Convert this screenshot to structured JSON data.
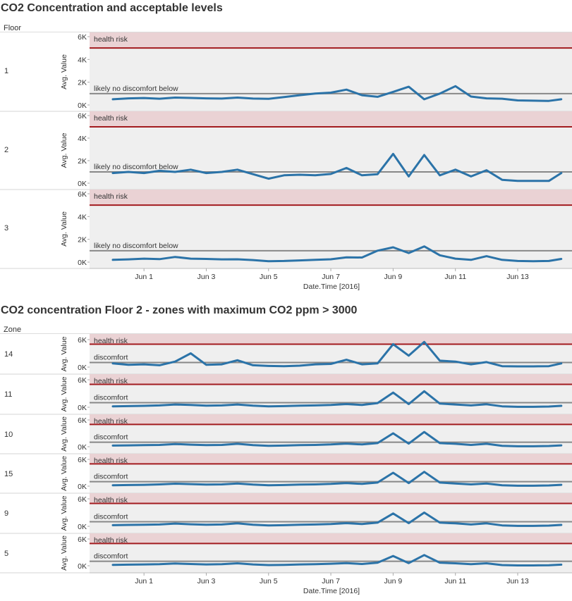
{
  "chart_top": {
    "title": "CO2 Concentration and acceptable levels",
    "row_header": "Floor",
    "ylabel": "Avg. Value",
    "xlabel": "Date.Time [2016]",
    "health_label": "health risk",
    "threshold_label": "likely no discomfort below",
    "y_ticks": [
      "6K",
      "4K",
      "2K",
      "0K"
    ],
    "x_ticks": [
      "Jun 1",
      "Jun 3",
      "Jun 5",
      "Jun 7",
      "Jun 9",
      "Jun 11",
      "Jun 13"
    ]
  },
  "chart_bottom": {
    "title": "CO2 concentration Floor 2 - zones with maximum CO2 ppm > 3000",
    "row_header": "Zone",
    "ylabel": "Avg. Value",
    "xlabel": "Date.Time [2016]",
    "health_label": "health risk",
    "threshold_label": "discomfort",
    "y_ticks": [
      "6K",
      "0K"
    ],
    "x_ticks": [
      "Jun 1",
      "Jun 3",
      "Jun 5",
      "Jun 7",
      "Jun 9",
      "Jun 11",
      "Jun 13"
    ]
  },
  "colors": {
    "line": "#2b73a8",
    "health_band": "#ead2d4",
    "health_line": "#a31b1f",
    "threshold_line": "#888888",
    "panel_bg": "#efefef"
  },
  "chart_data": [
    {
      "type": "line",
      "title": "CO2 Concentration and acceptable levels",
      "xlabel": "Date.Time [2016]",
      "ylabel": "Avg. Value",
      "ylim": [
        0,
        6000
      ],
      "x_unit": "days of June 2016",
      "thresholds": {
        "health_risk": 5000,
        "discomfort": 1000
      },
      "x": [
        30.0,
        30.5,
        31.0,
        31.5,
        32.0,
        32.5,
        33.0,
        33.5,
        34.0,
        34.5,
        35.0,
        35.5,
        36.0,
        36.5,
        37.0,
        37.5,
        38.0,
        38.5,
        39.0,
        39.5,
        40.0,
        40.5,
        41.0,
        41.5,
        42.0,
        42.5,
        43.0,
        43.5,
        44.0,
        44.4
      ],
      "series": [
        {
          "name": "1",
          "values": [
            500,
            580,
            610,
            550,
            650,
            620,
            580,
            560,
            650,
            560,
            540,
            700,
            860,
            1000,
            1080,
            1350,
            860,
            720,
            1150,
            1600,
            500,
            1000,
            1650,
            740,
            580,
            550,
            400,
            380,
            360,
            500
          ]
        },
        {
          "name": "2",
          "values": [
            900,
            1000,
            900,
            1100,
            1000,
            1200,
            900,
            1000,
            1200,
            800,
            400,
            700,
            750,
            700,
            820,
            1350,
            700,
            800,
            2600,
            600,
            2500,
            700,
            1200,
            600,
            1150,
            300,
            200,
            200,
            200,
            900
          ]
        },
        {
          "name": "3",
          "values": [
            200,
            240,
            300,
            260,
            450,
            300,
            280,
            240,
            250,
            180,
            80,
            100,
            150,
            200,
            250,
            420,
            400,
            1000,
            1300,
            800,
            1380,
            600,
            300,
            200,
            520,
            200,
            100,
            80,
            100,
            280
          ]
        }
      ]
    },
    {
      "type": "line",
      "title": "CO2 concentration Floor 2 - zones with maximum CO2 ppm > 3000",
      "xlabel": "Date.Time [2016]",
      "ylabel": "Avg. Value",
      "ylim": [
        0,
        6000
      ],
      "x_unit": "days of June 2016",
      "thresholds": {
        "health_risk": 5000,
        "discomfort": 1000
      },
      "x": [
        30.0,
        30.5,
        31.0,
        31.5,
        32.0,
        32.5,
        33.0,
        33.5,
        34.0,
        34.5,
        35.0,
        35.5,
        36.0,
        36.5,
        37.0,
        37.5,
        38.0,
        38.5,
        39.0,
        39.5,
        40.0,
        40.5,
        41.0,
        41.5,
        42.0,
        42.5,
        43.0,
        43.5,
        44.0,
        44.4
      ],
      "series": [
        {
          "name": "14",
          "values": [
            800,
            500,
            600,
            400,
            1200,
            3000,
            500,
            600,
            1500,
            400,
            250,
            200,
            300,
            600,
            700,
            1600,
            600,
            800,
            5000,
            2500,
            5500,
            1400,
            1200,
            600,
            1100,
            200,
            150,
            150,
            200,
            800
          ]
        },
        {
          "name": "11",
          "values": [
            200,
            250,
            300,
            400,
            600,
            500,
            350,
            400,
            600,
            350,
            200,
            250,
            350,
            400,
            500,
            700,
            500,
            900,
            3200,
            700,
            3500,
            800,
            600,
            400,
            650,
            200,
            100,
            100,
            150,
            300
          ]
        },
        {
          "name": "10",
          "values": [
            250,
            300,
            350,
            400,
            600,
            450,
            350,
            400,
            650,
            350,
            200,
            250,
            350,
            400,
            500,
            700,
            500,
            800,
            3000,
            700,
            3300,
            800,
            650,
            400,
            650,
            200,
            100,
            100,
            150,
            300
          ]
        },
        {
          "name": "15",
          "values": [
            200,
            250,
            300,
            400,
            550,
            450,
            350,
            400,
            600,
            350,
            200,
            250,
            350,
            400,
            500,
            700,
            500,
            800,
            3000,
            700,
            3200,
            800,
            600,
            400,
            600,
            200,
            100,
            100,
            150,
            300
          ]
        },
        {
          "name": "9",
          "values": [
            250,
            300,
            350,
            400,
            600,
            450,
            350,
            400,
            650,
            350,
            200,
            250,
            350,
            400,
            500,
            700,
            500,
            800,
            2800,
            700,
            3000,
            800,
            650,
            400,
            650,
            200,
            100,
            100,
            150,
            300
          ]
        },
        {
          "name": "5",
          "values": [
            200,
            250,
            300,
            350,
            500,
            400,
            300,
            350,
            550,
            300,
            150,
            200,
            300,
            350,
            450,
            600,
            400,
            700,
            2200,
            600,
            2400,
            700,
            550,
            350,
            550,
            150,
            80,
            80,
            120,
            250
          ]
        }
      ]
    }
  ]
}
